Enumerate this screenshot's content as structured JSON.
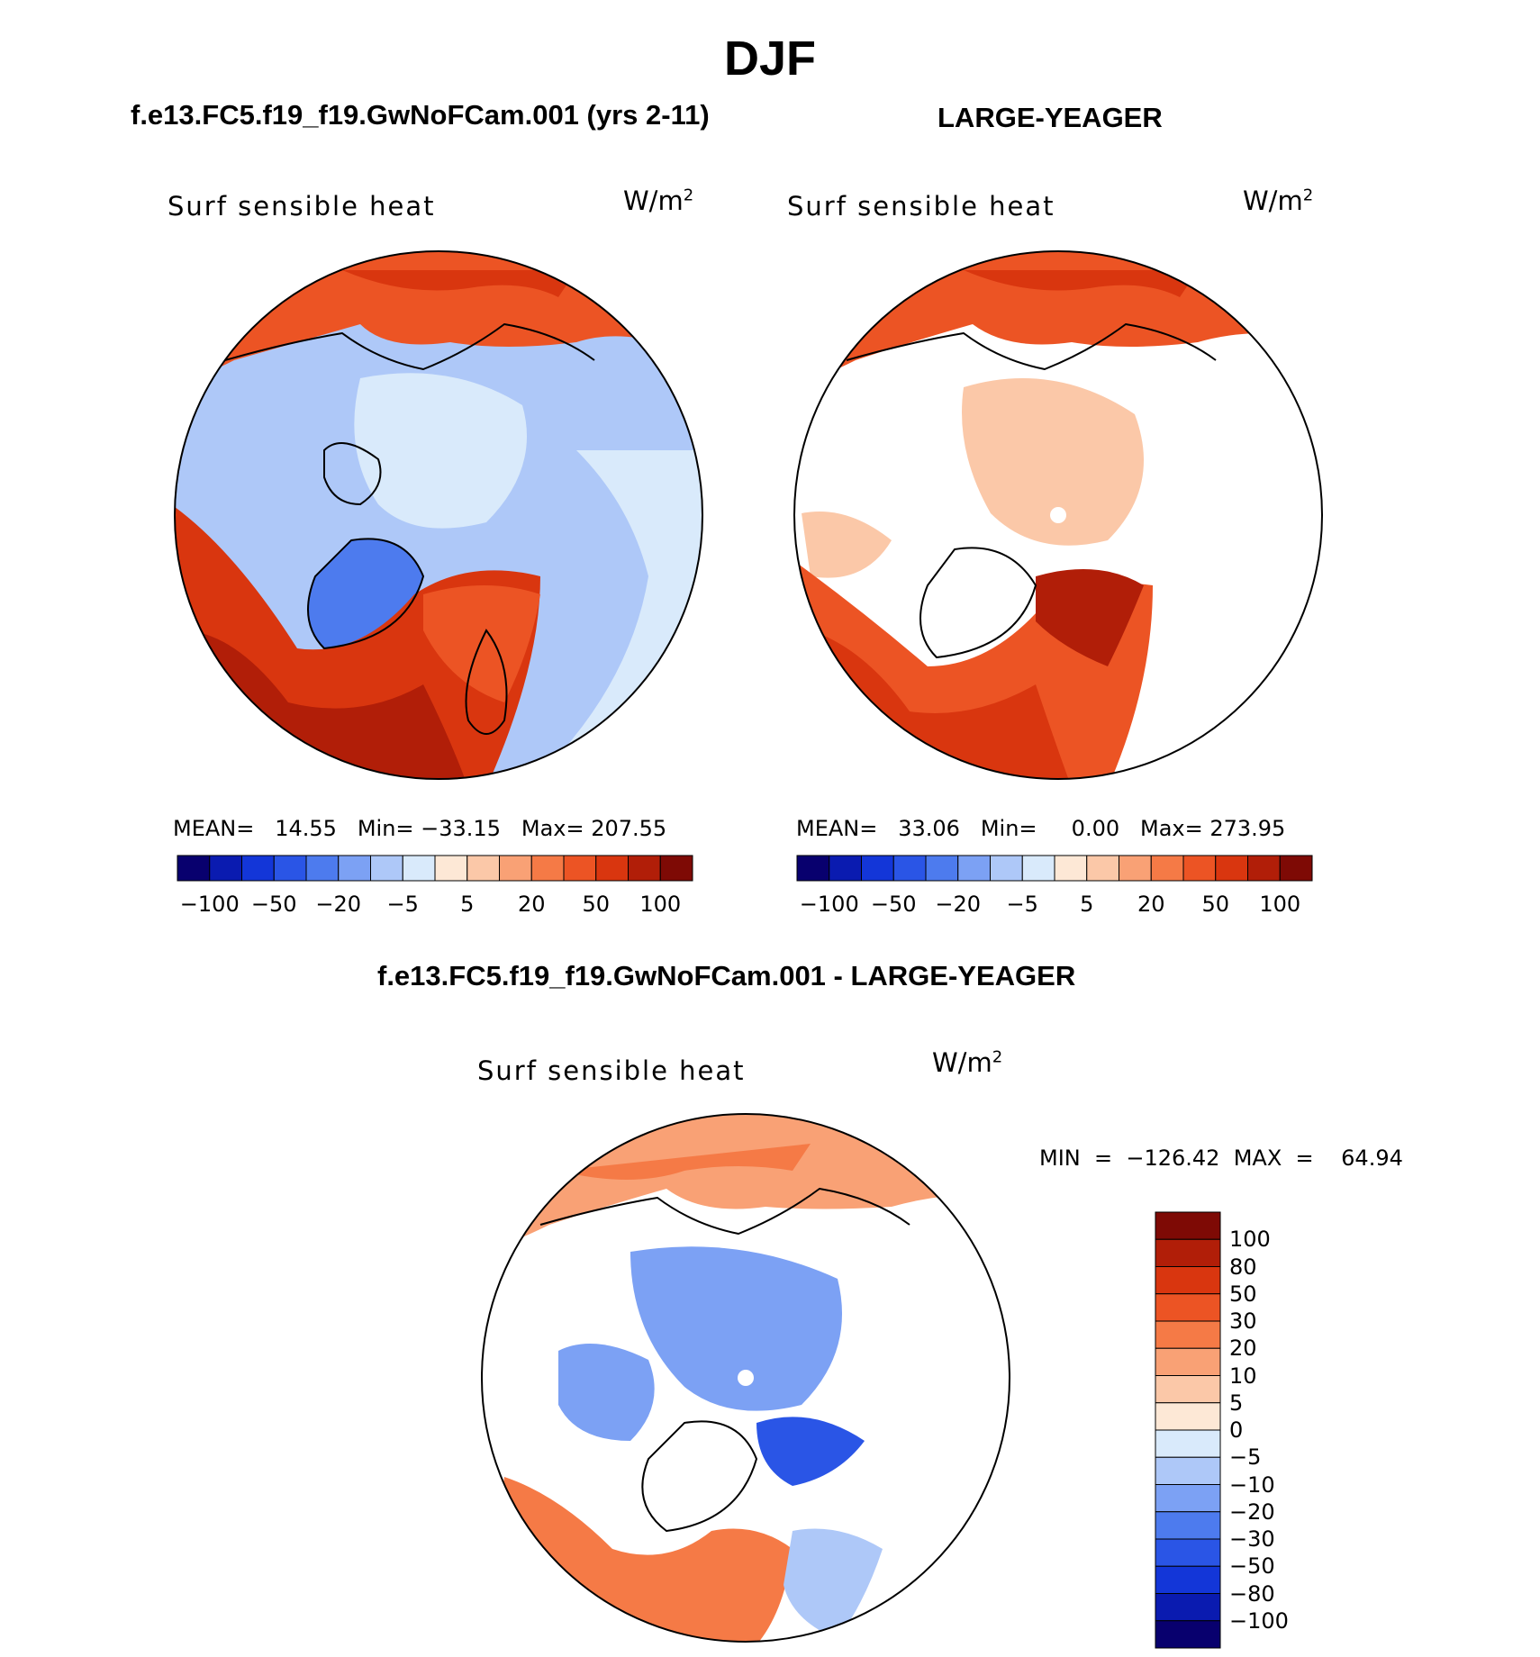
{
  "figure_title": "DJF",
  "panels": [
    {
      "case_title": "f.e13.FC5.f19_f19.GwNoFCam.001 (yrs 2-11)",
      "variable_label": "Surf sensible heat",
      "units": "W/m",
      "units_sup": "2",
      "stats": "MEAN=   14.55   Min= −33.15   Max= 207.55",
      "colorbar_ticks": [
        "−100",
        "−50",
        "−20",
        "−5",
        "5",
        "20",
        "50",
        "100"
      ]
    },
    {
      "case_title": "LARGE-YEAGER",
      "variable_label": "Surf sensible heat",
      "units": "W/m",
      "units_sup": "2",
      "stats": "MEAN=   33.06   Min=     0.00   Max= 273.95",
      "colorbar_ticks": [
        "−100",
        "−50",
        "−20",
        "−5",
        "5",
        "20",
        "50",
        "100"
      ]
    },
    {
      "case_title": "f.e13.FC5.f19_f19.GwNoFCam.001 - LARGE-YEAGER",
      "variable_label": "Surf sensible heat",
      "units": "W/m",
      "units_sup": "2",
      "stats": "MIN  =  −126.42  MAX  =    64.94",
      "colorbar_ticks": [
        "100",
        "80",
        "50",
        "30",
        "20",
        "10",
        "5",
        "0",
        "−5",
        "−10",
        "−20",
        "−30",
        "−50",
        "−80",
        "−100"
      ]
    }
  ],
  "colors": {
    "abs_scale": [
      "#08006e",
      "#0a1bb0",
      "#1336d8",
      "#2a55e6",
      "#4d7bee",
      "#7ca1f4",
      "#aec8f8",
      "#d9eafb",
      "#fde8d6",
      "#fbc8a8",
      "#f9a175",
      "#f57a46",
      "#ec5424",
      "#d9360f",
      "#b11e08",
      "#7e0a05"
    ],
    "diff_scale": [
      "#08006e",
      "#0a1bb0",
      "#1336d8",
      "#2a55e6",
      "#4d7bee",
      "#7ca1f4",
      "#aec8f8",
      "#d9eafb",
      "#fde8d6",
      "#fbc8a8",
      "#f9a175",
      "#f57a46",
      "#ec5424",
      "#d9360f",
      "#b11e08",
      "#7e0a05"
    ]
  }
}
